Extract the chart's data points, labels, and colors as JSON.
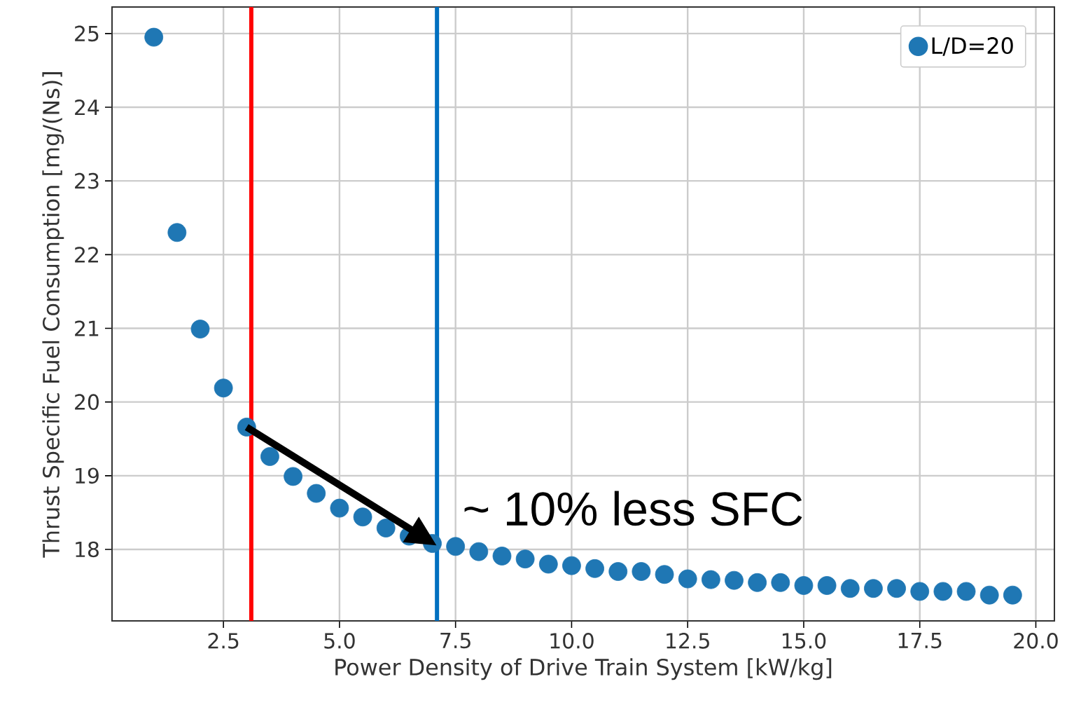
{
  "chart_data": {
    "type": "scatter",
    "xlabel": "Power Density of Drive Train System [kW/kg]",
    "ylabel": "Thrust Specific Fuel Consumption [mg/(Ns)]",
    "x": [
      1.0,
      1.5,
      2.0,
      2.5,
      3.0,
      3.5,
      4.0,
      4.5,
      5.0,
      5.5,
      6.0,
      6.5,
      7.0,
      7.5,
      8.0,
      8.5,
      9.0,
      9.5,
      10.0,
      10.5,
      11.0,
      11.5,
      12.0,
      12.5,
      13.0,
      13.5,
      14.0,
      14.5,
      15.0,
      15.5,
      16.0,
      16.5,
      17.0,
      17.5,
      18.0,
      18.5,
      19.0,
      19.5
    ],
    "series": [
      {
        "name": "L/D=20",
        "color": "#1f77b4",
        "values": [
          24.95,
          22.3,
          20.99,
          20.19,
          19.66,
          19.26,
          18.99,
          18.76,
          18.56,
          18.44,
          18.29,
          18.18,
          18.08,
          18.04,
          17.97,
          17.91,
          17.87,
          17.8,
          17.78,
          17.74,
          17.7,
          17.7,
          17.66,
          17.6,
          17.59,
          17.58,
          17.55,
          17.55,
          17.51,
          17.51,
          17.47,
          17.47,
          17.47,
          17.43,
          17.43,
          17.43,
          17.38,
          17.38
        ]
      }
    ],
    "xlim": [
      0.1,
      20.4
    ],
    "ylim": [
      17.03,
      25.36
    ],
    "xticks": [
      2.5,
      {
        "value": 5.0,
        "label": "5.0"
      },
      7.5,
      {
        "value": 10.0,
        "label": "10.0"
      },
      12.5,
      {
        "value": 15.0,
        "label": "15.0"
      },
      17.5,
      {
        "value": 20.0,
        "label": "20.0"
      }
    ],
    "yticks": [
      18,
      19,
      20,
      21,
      22,
      23,
      24,
      25
    ],
    "ref_lines": [
      {
        "axis": "x",
        "value": 3.1,
        "color": "#ff0000"
      },
      {
        "axis": "x",
        "value": 7.1,
        "color": "#0070c0"
      }
    ],
    "annotations": [
      {
        "text": "~ 10% less SFC",
        "x": 7.1,
        "y": 18.05
      }
    ],
    "grid": true,
    "legend": "top right",
    "marker": "circle"
  }
}
